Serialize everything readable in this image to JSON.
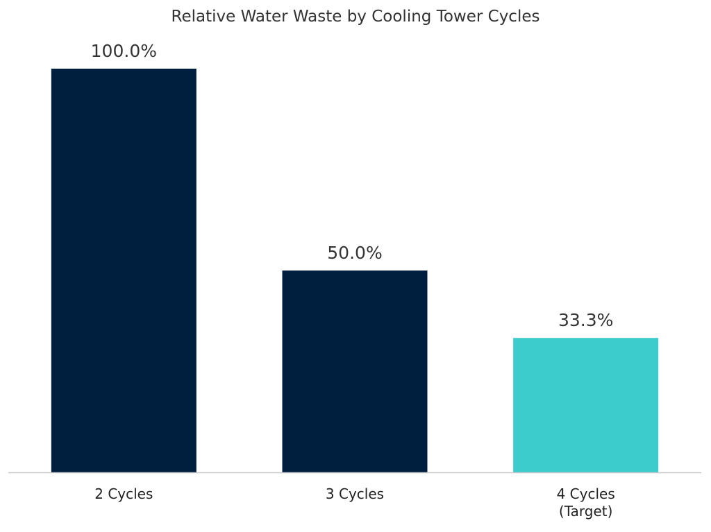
{
  "chart_data": {
    "type": "bar",
    "title": "Relative Water Waste by Cooling Tower Cycles",
    "xlabel": "",
    "ylabel": "",
    "categories": [
      "2 Cycles",
      "3 Cycles",
      "4 Cycles\n(Target)"
    ],
    "values": [
      100.0,
      50.0,
      33.3
    ],
    "data_labels": [
      "100.0%",
      "50.0%",
      "33.3%"
    ],
    "ylim": [
      0,
      100
    ],
    "grid": false,
    "legend": "none",
    "colors": [
      "#001f3f",
      "#001f3f",
      "#3ccccc"
    ],
    "axis_color": "#c8c8c8",
    "text_color": "#333333"
  }
}
